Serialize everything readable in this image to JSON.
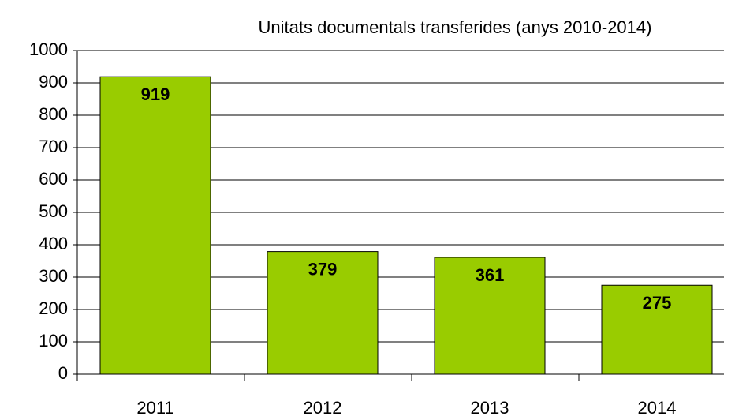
{
  "chart_data": {
    "type": "bar",
    "title": "Unitats documentals transferides (anys 2010-2014)",
    "categories": [
      "2011",
      "2012",
      "2013",
      "2014"
    ],
    "values": [
      919,
      379,
      361,
      275
    ],
    "color": "#99cc00",
    "ylim": [
      0,
      1000
    ],
    "yticks": [
      0,
      100,
      200,
      300,
      400,
      500,
      600,
      700,
      800,
      900,
      1000
    ],
    "grid": true
  }
}
